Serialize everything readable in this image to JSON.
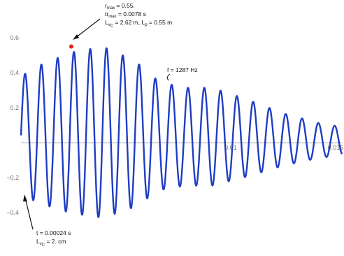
{
  "chart_data": {
    "type": "line",
    "title": "",
    "xlabel": "",
    "ylabel": "",
    "xlim": [
      0,
      0.0153
    ],
    "ylim": [
      -0.47,
      0.64
    ],
    "x_ticks": [
      {
        "value": 0.01,
        "label": "0.01"
      },
      {
        "value": 0.015,
        "label": "0.015"
      }
    ],
    "y_ticks": [
      {
        "value": 0.6,
        "label": "0.6"
      },
      {
        "value": 0.4,
        "label": "0.4"
      },
      {
        "value": 0.2,
        "label": "0.2"
      },
      {
        "value": 0.0,
        "label": ""
      },
      {
        "value": -0.2,
        "label": "−0.2"
      },
      {
        "value": -0.4,
        "label": "−0.4"
      }
    ],
    "grid": false,
    "series": [
      {
        "color": "#1f3dc4",
        "frequency_hz": 1287,
        "offset": 0.06,
        "envelope": [
          {
            "t": 0.0,
            "a": 0.34
          },
          {
            "t": 0.001,
            "a": 0.4
          },
          {
            "t": 0.0024,
            "a": 0.46
          },
          {
            "t": 0.0039,
            "a": 0.49
          },
          {
            "t": 0.0054,
            "a": 0.42
          },
          {
            "t": 0.0066,
            "a": 0.31
          },
          {
            "t": 0.0078,
            "a": 0.28
          },
          {
            "t": 0.0091,
            "a": 0.28
          },
          {
            "t": 0.0108,
            "a": 0.22
          },
          {
            "t": 0.0125,
            "a": 0.15
          },
          {
            "t": 0.0142,
            "a": 0.1
          },
          {
            "t": 0.0153,
            "a": 0.08
          }
        ]
      }
    ],
    "markers": [
      {
        "name": "peak",
        "x": 0.0024,
        "y": 0.55,
        "color": "#e0201b"
      }
    ],
    "annotations": {
      "top": {
        "r_max_main": "r",
        "r_max_sub": "max",
        "r_max_value": " = 0.55.",
        "tr_max_main": "tr",
        "tr_max_sub": "max",
        "tr_max_value": " = 0.0078 s",
        "l_main": "L",
        "l_sub1": "v",
        "l_sub2": "C",
        "l_mid": " = 2.62  m, L",
        "l_sub3": "p",
        "l_end": " = 0.55 m"
      },
      "freq": {
        "text": "f = 1287 Hz"
      },
      "bottom": {
        "t_text": "t = 0.00024 s",
        "l_main": "L",
        "l_sub1": "v",
        "l_sub2": "C",
        "l_value": " = 2. cm"
      }
    }
  }
}
